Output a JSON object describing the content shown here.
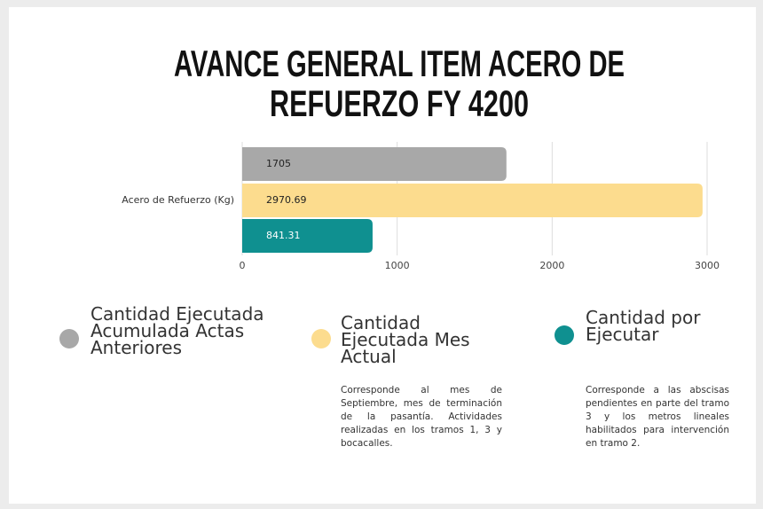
{
  "chart_data": {
    "type": "bar",
    "orientation": "horizontal",
    "title": [
      "AVANCE GENERAL ITEM ACERO DE",
      "REFUERZO FY 4200"
    ],
    "categories": [
      "Acero de Refuerzo (Kg)"
    ],
    "series": [
      {
        "name": "Cantidad Ejecutada Acumulada Actas Anteriores",
        "color": "#a8a8a8",
        "values": [
          1705
        ]
      },
      {
        "name": "Cantidad Ejecutada Mes Actual",
        "color": "#fcdc8e",
        "values": [
          2970.69
        ],
        "description": "Corresponde al mes de Septiembre, mes de terminación de la pasantía. Actividades realizadas en los tramos 1, 3 y bocacalles."
      },
      {
        "name": "Cantidad por Ejecutar",
        "color": "#0f9090",
        "values": [
          841.31
        ],
        "description": "Corresponde a las abscisas pendientes en parte del tramo 3 y los metros lineales habilitados para intervención en tramo 2."
      }
    ],
    "xlim": [
      0,
      3000
    ],
    "xticks": [
      0,
      1000,
      2000,
      3000
    ],
    "grid": true
  }
}
